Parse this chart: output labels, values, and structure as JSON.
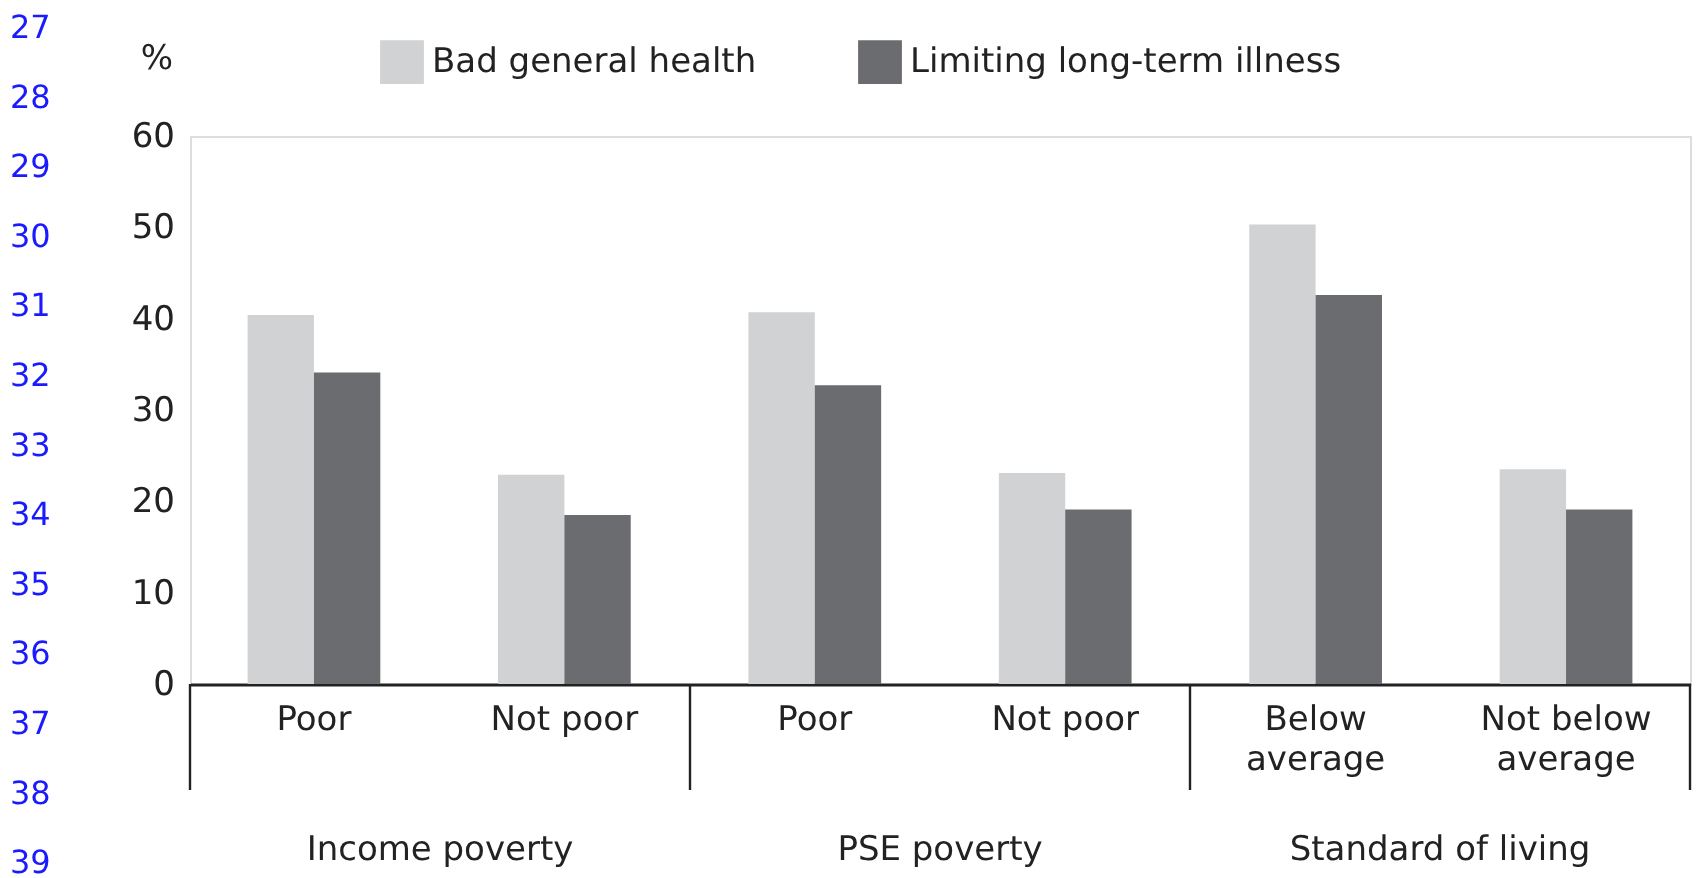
{
  "chart_data": {
    "type": "bar",
    "ylabel": "%",
    "categories": [
      "Poor",
      "Not poor",
      "Poor",
      "Not poor",
      "Below average",
      "Not below average"
    ],
    "series": [
      {
        "name": "Bad general health",
        "color": "#d1d2d4",
        "values": [
          40.4,
          22.9,
          40.7,
          23.1,
          50.3,
          23.5
        ]
      },
      {
        "name": "Limiting long-term illness",
        "color": "#6b6c70",
        "values": [
          34.1,
          18.5,
          32.7,
          19.1,
          42.6,
          19.1
        ]
      }
    ],
    "ylim": [
      0,
      60
    ],
    "yticks": [
      0,
      10,
      20,
      30,
      40,
      50,
      60
    ],
    "grid": false,
    "legend": "top",
    "annotations": [
      "Income poverty",
      "PSE poverty",
      "Standard of living",
      "27",
      "28",
      "29",
      "30",
      "31",
      "32",
      "33",
      "34",
      "35",
      "36",
      "37",
      "38",
      "39"
    ]
  }
}
